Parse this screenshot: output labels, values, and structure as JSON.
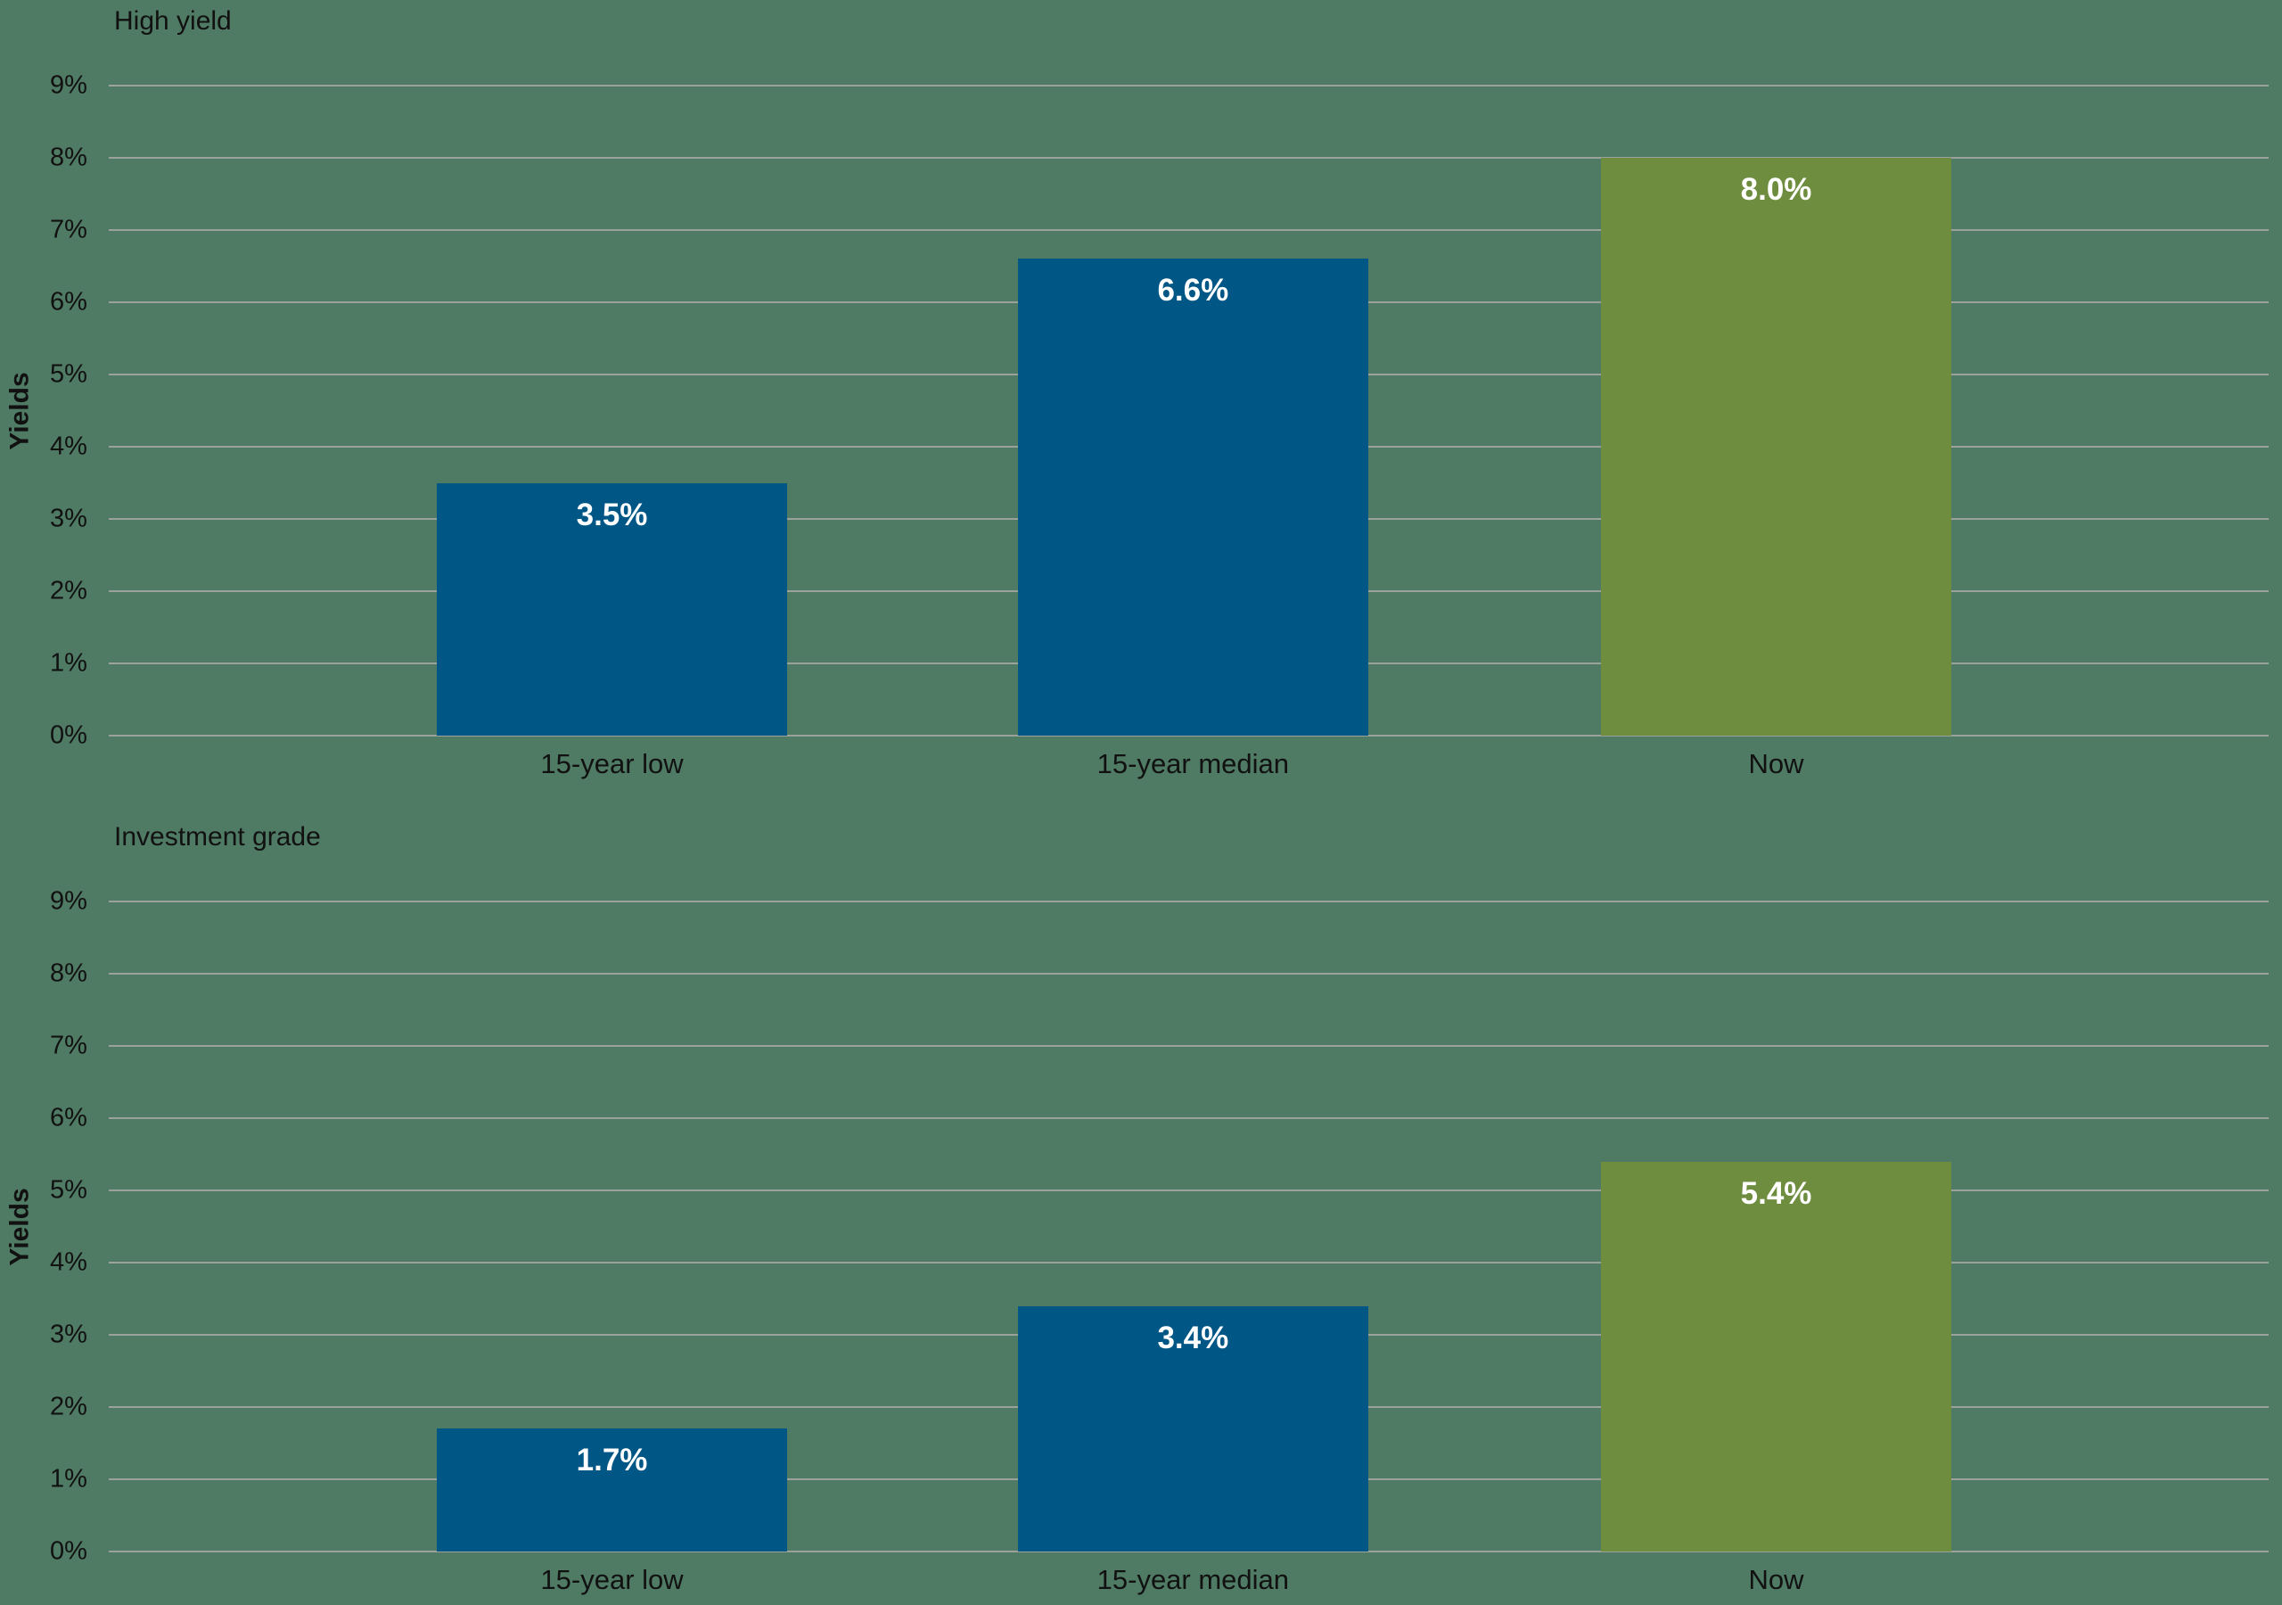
{
  "colors": {
    "background": "#4f7a64",
    "gridline": "#9aa29b",
    "bar_blue": "#005685",
    "bar_green": "#6f8d3f",
    "axis_text": "#111111",
    "value_text": "#ffffff"
  },
  "chart_data": [
    {
      "type": "bar",
      "title": "High yield",
      "ylabel": "Yields",
      "xlabel": "",
      "categories": [
        "15-year low",
        "15-year median",
        "Now"
      ],
      "values": [
        3.5,
        6.6,
        8.0
      ],
      "value_labels": [
        "3.5%",
        "6.6%",
        "8.0%"
      ],
      "bar_colors": [
        "#005685",
        "#005685",
        "#6f8d3f"
      ],
      "ylim": [
        0,
        9
      ],
      "ytick_step": 1,
      "ytick_labels": [
        "0%",
        "1%",
        "2%",
        "3%",
        "4%",
        "5%",
        "6%",
        "7%",
        "8%",
        "9%"
      ],
      "grid": true,
      "legend": false
    },
    {
      "type": "bar",
      "title": "Investment grade",
      "ylabel": "Yields",
      "xlabel": "",
      "categories": [
        "15-year low",
        "15-year median",
        "Now"
      ],
      "values": [
        1.7,
        3.4,
        5.4
      ],
      "value_labels": [
        "1.7%",
        "3.4%",
        "5.4%"
      ],
      "bar_colors": [
        "#005685",
        "#005685",
        "#6f8d3f"
      ],
      "ylim": [
        0,
        9
      ],
      "ytick_step": 1,
      "ytick_labels": [
        "0%",
        "1%",
        "2%",
        "3%",
        "4%",
        "5%",
        "6%",
        "7%",
        "8%",
        "9%"
      ],
      "grid": true,
      "legend": false
    }
  ]
}
